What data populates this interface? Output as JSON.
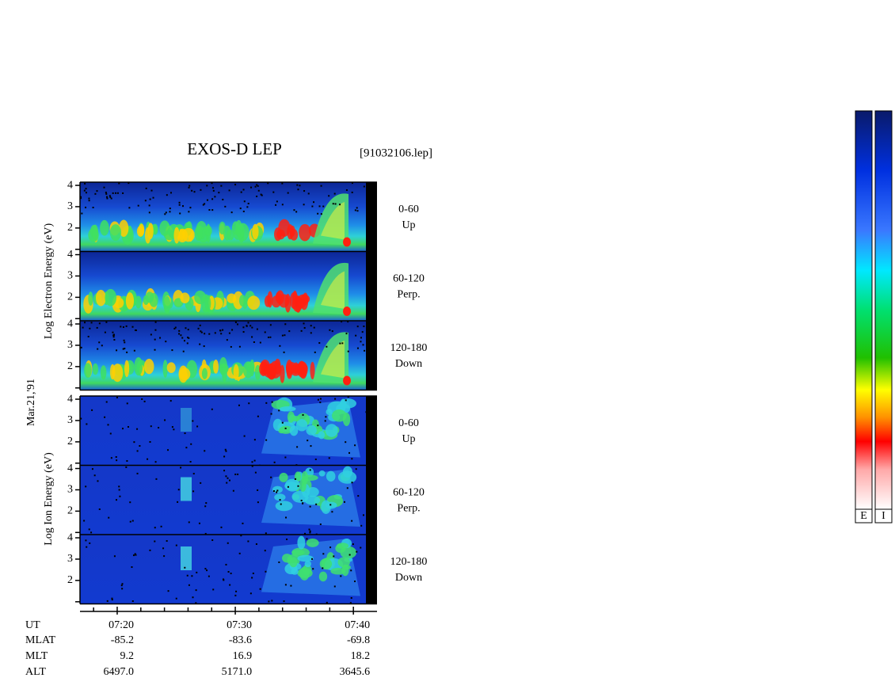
{
  "header": {
    "title": "EXOS-D LEP",
    "file": "[91032106.lep]"
  },
  "date": "Mar.21,'91",
  "groups": [
    {
      "ylabel": "Log Electron Energy (eV)",
      "panels": [
        {
          "pitch": "0-60",
          "direction": "Up"
        },
        {
          "pitch": "60-120",
          "direction": "Perp."
        },
        {
          "pitch": "120-180",
          "direction": "Down"
        }
      ]
    },
    {
      "ylabel": "Log Ion Energy (eV)",
      "panels": [
        {
          "pitch": "0-60",
          "direction": "Up"
        },
        {
          "pitch": "60-120",
          "direction": "Perp."
        },
        {
          "pitch": "120-180",
          "direction": "Down"
        }
      ]
    }
  ],
  "yaxis": {
    "ylim": [
      0.9,
      4.15
    ],
    "yticks": [
      2,
      3,
      4
    ],
    "minor_yticks": [
      1
    ]
  },
  "xaxis": {
    "xlim": [
      436.85,
      462
    ],
    "xticks": [
      {
        "value": 440,
        "label": "07:20"
      },
      {
        "value": 450,
        "label": "07:30"
      },
      {
        "value": 460,
        "label": "07:40"
      }
    ],
    "minor_xticks": [
      438,
      442,
      444,
      446,
      448,
      452,
      454,
      456,
      458
    ]
  },
  "orbit": {
    "ut_label": "UT",
    "rows": [
      {
        "label": "MLAT",
        "values": [
          "-85.2",
          "-83.6",
          "-69.8"
        ]
      },
      {
        "label": "MLT",
        "values": [
          "9.2",
          "16.9",
          "18.2"
        ]
      },
      {
        "label": "ALT",
        "values": [
          "6497.0",
          "5171.0",
          "3645.6"
        ]
      }
    ]
  },
  "colorbars": [
    "E",
    "I"
  ]
}
